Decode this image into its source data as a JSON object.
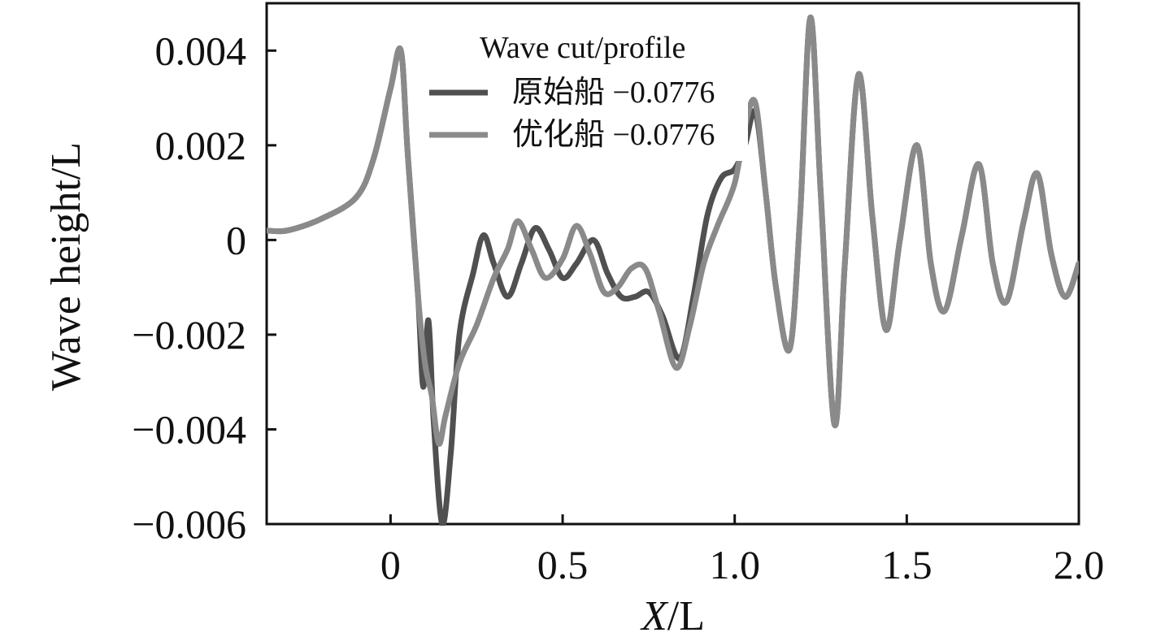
{
  "chart_data": {
    "type": "line",
    "title": "",
    "xlabel_italic": "X",
    "xlabel_rest": "/L",
    "ylabel": "Wave height/L",
    "xlim": [
      -0.36,
      2.0
    ],
    "ylim": [
      -0.006,
      0.005
    ],
    "x_ticks": [
      {
        "value": 0,
        "label": "0"
      },
      {
        "value": 0.5,
        "label": "0.5"
      },
      {
        "value": 1.0,
        "label": "1.0"
      },
      {
        "value": 1.5,
        "label": "1.5"
      },
      {
        "value": 2.0,
        "label": "2.0"
      }
    ],
    "y_ticks": [
      {
        "value": 0.004,
        "label": "0.004"
      },
      {
        "value": 0.002,
        "label": "0.002"
      },
      {
        "value": 0,
        "label": "0"
      },
      {
        "value": -0.002,
        "label": "−0.002"
      },
      {
        "value": -0.004,
        "label": "−0.004"
      },
      {
        "value": -0.006,
        "label": "−0.006"
      }
    ],
    "legend": {
      "title": "Wave cut/profile",
      "position": "top-center"
    },
    "series": [
      {
        "name": "原始船 −0.0776",
        "color": "#505050",
        "x": [
          -0.36,
          -0.3,
          -0.2,
          -0.1,
          -0.05,
          0.0,
          0.03,
          0.05,
          0.08,
          0.095,
          0.11,
          0.125,
          0.15,
          0.175,
          0.2,
          0.24,
          0.27,
          0.3,
          0.34,
          0.38,
          0.42,
          0.46,
          0.5,
          0.54,
          0.59,
          0.63,
          0.67,
          0.71,
          0.75,
          0.79,
          0.84,
          0.88,
          0.92,
          0.96,
          1.0,
          1.03,
          1.06,
          1.09,
          1.12,
          1.16,
          1.19,
          1.22,
          1.25,
          1.29,
          1.32,
          1.36,
          1.4,
          1.44,
          1.48,
          1.53,
          1.57,
          1.61,
          1.66,
          1.71,
          1.75,
          1.79,
          1.84,
          1.88,
          1.92,
          1.96,
          2.0
        ],
        "values": [
          0.0002,
          0.0002,
          0.00045,
          0.0009,
          0.0017,
          0.0032,
          0.004,
          0.0018,
          -0.0012,
          -0.0031,
          -0.0017,
          -0.0038,
          -0.006,
          -0.0045,
          -0.002,
          -0.0007,
          0.0001,
          -0.0005,
          -0.0012,
          -0.0005,
          0.00025,
          -0.0002,
          -0.0008,
          -0.0005,
          0.0,
          -0.0007,
          -0.0012,
          -0.0012,
          -0.0011,
          -0.0016,
          -0.0025,
          -0.0012,
          0.0005,
          0.0013,
          0.0015,
          0.002,
          0.0027,
          0.001,
          -0.001,
          -0.0023,
          0.0005,
          0.0047,
          0.001,
          -0.0039,
          -0.0005,
          0.0035,
          0.0005,
          -0.0019,
          0.0,
          0.002,
          -0.0005,
          -0.0015,
          0.0001,
          0.0016,
          -0.0005,
          -0.0013,
          0.0004,
          0.0014,
          -0.0003,
          -0.0012,
          -0.0005
        ]
      },
      {
        "name": "优化船 −0.0776",
        "color": "#8a8a8a",
        "x": [
          -0.36,
          -0.3,
          -0.2,
          -0.1,
          -0.05,
          0.0,
          0.03,
          0.05,
          0.08,
          0.1,
          0.12,
          0.14,
          0.16,
          0.2,
          0.25,
          0.3,
          0.34,
          0.37,
          0.41,
          0.45,
          0.5,
          0.54,
          0.58,
          0.62,
          0.66,
          0.7,
          0.74,
          0.78,
          0.83,
          0.87,
          0.91,
          0.95,
          1.0,
          1.03,
          1.06,
          1.09,
          1.12,
          1.16,
          1.19,
          1.22,
          1.25,
          1.29,
          1.32,
          1.36,
          1.4,
          1.44,
          1.48,
          1.53,
          1.57,
          1.61,
          1.66,
          1.71,
          1.75,
          1.79,
          1.84,
          1.88,
          1.92,
          1.96,
          2.0
        ],
        "values": [
          0.0002,
          0.0002,
          0.00045,
          0.0009,
          0.0017,
          0.0032,
          0.004,
          0.0018,
          -0.0012,
          -0.0026,
          -0.0033,
          -0.0043,
          -0.0037,
          -0.0026,
          -0.0018,
          -0.0008,
          -0.0002,
          0.0004,
          -0.0002,
          -0.0008,
          -0.0004,
          0.0003,
          -0.0003,
          -0.0011,
          -0.001,
          -0.0006,
          -0.0006,
          -0.0015,
          -0.0027,
          -0.0018,
          -0.0005,
          0.0003,
          0.0012,
          0.0024,
          0.0029,
          0.001,
          -0.001,
          -0.0023,
          0.0005,
          0.0047,
          0.001,
          -0.0039,
          -0.0005,
          0.0035,
          0.0005,
          -0.0019,
          0.0,
          0.002,
          -0.0005,
          -0.0015,
          0.0001,
          0.0016,
          -0.0005,
          -0.0013,
          0.0004,
          0.0014,
          -0.0003,
          -0.0012,
          -0.0005
        ]
      }
    ],
    "grid": false
  }
}
